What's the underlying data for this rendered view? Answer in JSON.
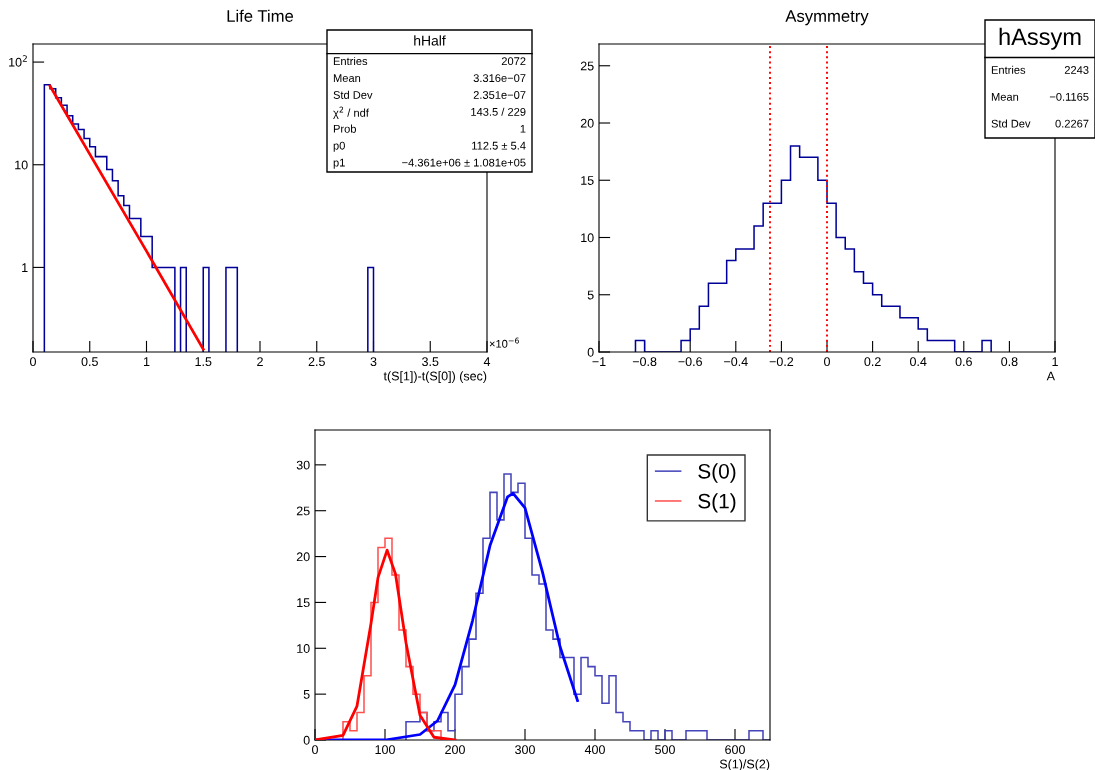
{
  "chart_data": [
    {
      "type": "histogram",
      "title": "Life Time",
      "xlabel": "t(S[1])-t(S[0]) (sec)",
      "log": "y",
      "xlim": [
        0,
        4
      ],
      "xticks": [
        0,
        0.5,
        1,
        1.5,
        2,
        2.5,
        3,
        3.5,
        4
      ],
      "ylim": [
        0.15,
        150
      ],
      "yticks": [
        1,
        10,
        {
          "value": 100,
          "label": "10$^{2}$"
        }
      ],
      "bins": [
        0.1,
        0.15,
        0.2,
        0.25,
        0.3,
        0.35,
        0.4,
        0.45,
        0.5,
        0.55,
        0.6,
        0.65,
        0.7,
        0.75,
        0.8,
        0.85,
        0.9,
        0.95,
        1,
        1.05,
        1.1,
        1.15,
        1.2,
        1.25
      ],
      "series": [
        {
          "type": "histogram",
          "color": "#000099",
          "values": [
            60,
            55,
            45,
            38,
            30,
            25,
            22,
            18,
            15,
            12,
            12,
            9,
            7,
            5,
            4,
            3,
            3,
            2,
            2,
            1,
            1,
            1,
            1
          ]
        },
        {
          "type": "histogram",
          "color": "#000099",
          "bins": [
            1.3,
            1.35
          ],
          "values": [
            1
          ]
        },
        {
          "type": "histogram",
          "color": "#000099",
          "bins": [
            1.5,
            1.55
          ],
          "values": [
            1
          ]
        },
        {
          "type": "histogram",
          "color": "#000099",
          "bins": [
            1.7,
            1.75,
            1.8
          ],
          "values": [
            1,
            1
          ]
        },
        {
          "type": "histogram",
          "color": "#000099",
          "bins": [
            2.95,
            3.0
          ],
          "values": [
            1
          ]
        },
        {
          "type": "line",
          "color": "#ff0000",
          "x": [
            0.15,
            0.5,
            1.0,
            1.5
          ],
          "values": [
            58.4,
            12.7,
            1.44,
            0.16
          ]
        }
      ],
      "annotations": [
        "hHalf",
        "Entries",
        "2072",
        "Mean",
        "3.316e−07",
        "Std Dev",
        "2.351e−07",
        "χ$^{2}$ / ndf",
        "143.5 / 229",
        "Prob",
        "1",
        "p0",
        "112.5 ± 5.4",
        "p1",
        "−4.361e+06 ± 1.081e+05",
        "×10$^{−6}$"
      ]
    },
    {
      "type": "histogram",
      "title": "Asymmetry",
      "xlabel": "A",
      "xlim": [
        -1,
        1
      ],
      "xticks": [
        {
          "value": -1,
          "label": "−1"
        },
        {
          "value": -0.8,
          "label": "−0.8"
        },
        {
          "value": -0.6,
          "label": "−0.6"
        },
        {
          "value": -0.4,
          "label": "−0.4"
        },
        {
          "value": -0.2,
          "label": "−0.2"
        },
        0,
        0.2,
        0.4,
        0.6,
        0.8,
        1
      ],
      "ylim": [
        0,
        26.9
      ],
      "yticks": [
        0,
        5,
        10,
        15,
        20,
        25
      ],
      "bins": [
        -0.84,
        -0.8,
        -0.76,
        -0.72,
        -0.68,
        -0.64,
        -0.6,
        -0.56,
        -0.52,
        -0.48,
        -0.44,
        -0.4,
        -0.36,
        -0.32,
        -0.28,
        -0.24,
        -0.2,
        -0.16,
        -0.12,
        -0.08,
        -0.04,
        0,
        0.04,
        0.08,
        0.12,
        0.16,
        0.2,
        0.24,
        0.28,
        0.32,
        0.36,
        0.4,
        0.44,
        0.48,
        0.52,
        0.56,
        0.6,
        0.64,
        0.68,
        0.72
      ],
      "series": [
        {
          "type": "histogram",
          "color": "#000099",
          "values": [
            1,
            0,
            0,
            0,
            0,
            1,
            2,
            4,
            6,
            6,
            8,
            9,
            9,
            11,
            13,
            13,
            15,
            18,
            17,
            17,
            15,
            13,
            10,
            9,
            7,
            6,
            5,
            4,
            4,
            3,
            3,
            2,
            1,
            1,
            1,
            0,
            0,
            0,
            1
          ]
        }
      ],
      "ref_lines": [
        {
          "axis": "x",
          "value": -0.25,
          "color": "#ff0000",
          "line_style": "dotted"
        },
        {
          "axis": "x",
          "value": 0,
          "color": "#ff0000",
          "line_style": "dotted"
        }
      ],
      "annotations": [
        "hAssym",
        "Entries",
        "2243",
        "Mean",
        "−0.1165",
        "Std Dev",
        "0.2267"
      ]
    },
    {
      "type": "histogram",
      "xlabel": "S(1)/S(2)",
      "legend": "top right",
      "xlim": [
        0,
        650
      ],
      "xticks": [
        0,
        100,
        200,
        300,
        400,
        500,
        600
      ],
      "ylim": [
        0,
        33.8
      ],
      "yticks": [
        0,
        5,
        10,
        15,
        20,
        25,
        30
      ],
      "series": [
        {
          "type": "histogram",
          "name": "S(0)",
          "color": "#4444bb",
          "bins": [
            130,
            140,
            150,
            160,
            170,
            180,
            190,
            200,
            210,
            220,
            230,
            240,
            250,
            260,
            270,
            280,
            290,
            300,
            310,
            320,
            330,
            340,
            350,
            360,
            370,
            380,
            390,
            400,
            410,
            420,
            430,
            440,
            450,
            460,
            470,
            480,
            490,
            500,
            510,
            520,
            530,
            540,
            550,
            560,
            570,
            580,
            590,
            600,
            610,
            620,
            630,
            640,
            650
          ],
          "values": [
            2,
            2,
            3,
            1,
            2,
            3,
            1,
            5,
            8,
            11,
            16,
            22,
            27,
            24,
            29,
            27,
            28,
            22,
            18,
            17,
            12,
            11,
            9,
            9,
            5,
            9,
            8,
            7,
            4,
            7,
            3,
            2,
            1,
            1,
            0,
            1,
            0,
            1,
            0,
            0,
            1,
            1,
            1,
            0,
            0,
            0,
            0,
            0,
            0,
            1,
            1,
            0
          ]
        },
        {
          "type": "histogram",
          "name": "S(1)",
          "color": "#ff5050",
          "bins": [
            40,
            50,
            60,
            70,
            80,
            90,
            100,
            110,
            120,
            130,
            140,
            150,
            160,
            170,
            180,
            190,
            200
          ],
          "values": [
            2,
            1,
            3,
            7,
            15,
            21,
            22,
            18,
            12,
            8,
            5,
            3,
            1,
            1,
            0,
            0
          ]
        },
        {
          "type": "line",
          "color": "#0000ff",
          "x": [
            0,
            100,
            150,
            175,
            200,
            225,
            250,
            275,
            283,
            300,
            325,
            350,
            375
          ],
          "values": [
            0,
            0,
            0.6,
            2.1,
            6.0,
            13.0,
            21.2,
            26.5,
            26.9,
            25.3,
            18.3,
            10.2,
            4.3
          ]
        },
        {
          "type": "line",
          "color": "#ff0000",
          "x": [
            0,
            40,
            60,
            80,
            90,
            103,
            115,
            130,
            150,
            170,
            200
          ],
          "values": [
            0,
            0.5,
            3.7,
            12.7,
            17.7,
            20.7,
            18.1,
            10.6,
            2.7,
            0.3,
            0
          ]
        }
      ]
    }
  ]
}
